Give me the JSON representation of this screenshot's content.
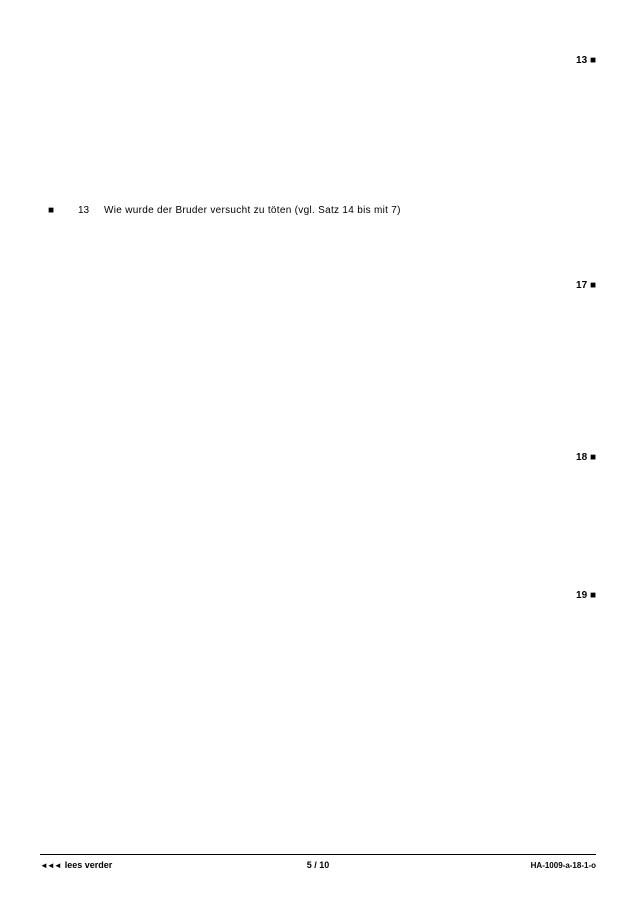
{
  "markers": {
    "m1": "13 ■",
    "m2": "17 ■",
    "m3": "18 ■",
    "m4": "19 ■"
  },
  "question": {
    "number": "■",
    "flag": "13",
    "text": "Wie wurde der Bruder versucht zu töten (vgl. Satz 14 bis mit 7)"
  },
  "footer": {
    "arrows": "◄◄◄",
    "leftText": "lees verder",
    "pageCurrent": "5",
    "pageSep": " / ",
    "pageTotal": "10",
    "docId": "HA-1009-a-18-1-o"
  },
  "colors": {
    "text": "#000000",
    "background": "#ffffff",
    "rule": "#000000"
  }
}
